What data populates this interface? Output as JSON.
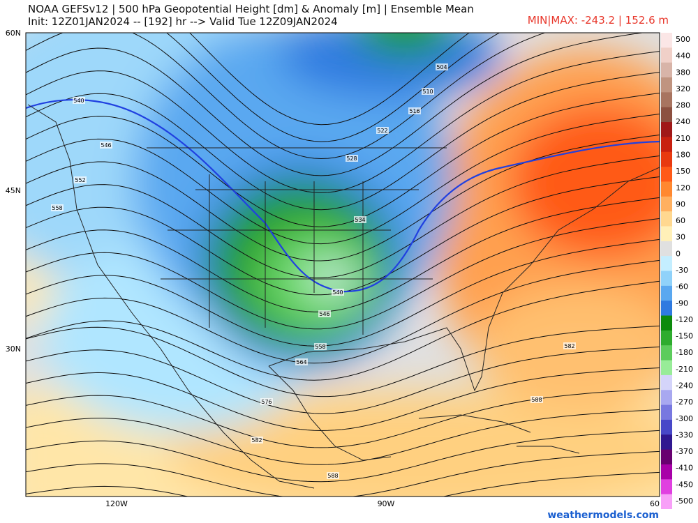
{
  "header": {
    "title": "NOAA GEFSv12 | 500 hPa Geopotential Height [dm] & Anomaly [m] | Ensemble Mean",
    "subtitle": "Init: 12Z01JAN2024 -- [192] hr --> Valid Tue 12Z09JAN2024",
    "minmax": "MIN|MAX: -243.2 | 152.6 m"
  },
  "map": {
    "lat_labels": [
      "60N",
      "45N",
      "30N"
    ],
    "lon_labels": [
      "120W",
      "90W",
      "60"
    ],
    "contour_labels": [
      "540",
      "546",
      "552",
      "558",
      "504",
      "510",
      "516",
      "522",
      "528",
      "534",
      "540",
      "546",
      "558",
      "564",
      "576",
      "582",
      "588",
      "582",
      "588"
    ]
  },
  "colorbar": {
    "labels": [
      "500",
      "440",
      "380",
      "320",
      "280",
      "240",
      "210",
      "180",
      "150",
      "120",
      "90",
      "60",
      "30",
      "0",
      "-30",
      "-60",
      "-90",
      "-120",
      "-150",
      "-180",
      "-210",
      "-240",
      "-270",
      "-300",
      "-330",
      "-370",
      "-410",
      "-450",
      "-500"
    ],
    "colors": [
      "#fbe6e6",
      "#f0d0c8",
      "#d8b4a8",
      "#c09480",
      "#a87460",
      "#8c5040",
      "#a01818",
      "#c82010",
      "#e83a10",
      "#ff5a18",
      "#ff8830",
      "#ffb060",
      "#ffd890",
      "#fff0b8",
      "#e0e0e0",
      "#c4eeff",
      "#90d2fa",
      "#5aa8f0",
      "#2f7ae0",
      "#0c8a0c",
      "#2eac2e",
      "#5ccc5c",
      "#98ec98",
      "#d4d4fa",
      "#a8a8f0",
      "#7878e0",
      "#4848c8",
      "#301890",
      "#680070",
      "#a800a8",
      "#e040e0",
      "#f8a0f8"
    ]
  },
  "footer": {
    "credit": "weathermodels.com"
  }
}
